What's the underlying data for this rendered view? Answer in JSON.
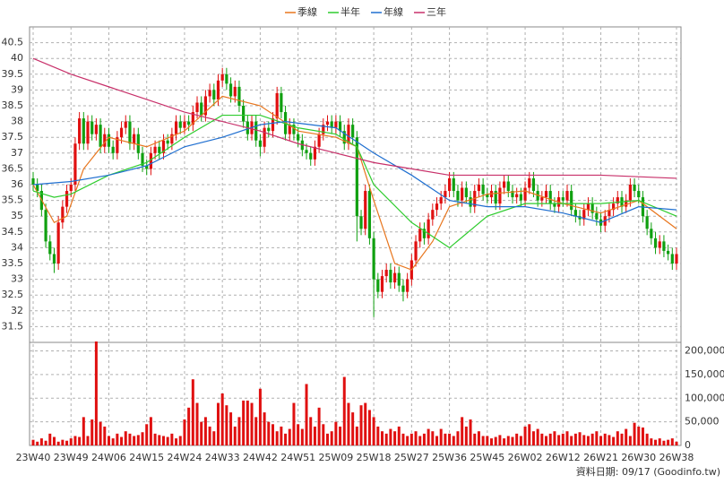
{
  "chart_data": {
    "type": "candlestick",
    "up_color": "#e01010",
    "down_color": "#10a010",
    "volume_color": "#e01010",
    "grid": true,
    "legend": "top",
    "footer": "資料日期: 09/17 (Goodinfo.tw)",
    "categories": [
      "23W40",
      null,
      null,
      null,
      null,
      null,
      null,
      null,
      null,
      "23W49",
      null,
      null,
      null,
      null,
      null,
      null,
      null,
      null,
      "24W06",
      null,
      null,
      null,
      null,
      null,
      null,
      null,
      null,
      "24W15",
      null,
      null,
      null,
      null,
      null,
      null,
      null,
      null,
      "24W24",
      null,
      null,
      null,
      null,
      null,
      null,
      null,
      null,
      "24W33",
      null,
      null,
      null,
      null,
      null,
      null,
      null,
      null,
      "24W42",
      null,
      null,
      null,
      null,
      null,
      null,
      null,
      null,
      "24W51",
      null,
      null,
      null,
      null,
      null,
      null,
      null,
      null,
      "25W09",
      null,
      null,
      null,
      null,
      null,
      null,
      null,
      null,
      "25W18",
      null,
      null,
      null,
      null,
      null,
      null,
      null,
      null,
      "25W27",
      null,
      null,
      null,
      null,
      null,
      null,
      null,
      null,
      "25W36",
      null,
      null,
      null,
      null,
      null,
      null,
      null,
      null,
      "25W45",
      null,
      null,
      null,
      null,
      null,
      null,
      null,
      null,
      "26W02",
      null,
      null,
      null,
      null,
      null,
      null,
      null,
      null,
      "26W12",
      null,
      null,
      null,
      null,
      null,
      null,
      null,
      null,
      "26W21",
      null,
      null,
      null,
      null,
      null,
      null,
      null,
      null,
      "26W30",
      null,
      null,
      null,
      null,
      null,
      null,
      null,
      null,
      "26W38"
    ],
    "open": [
      36.2,
      36.0,
      35.8,
      35.2,
      34.2,
      33.8,
      33.5,
      34.8,
      35.3,
      35.8,
      36.0,
      37.3,
      38.1,
      37.3,
      38.0,
      37.6,
      37.9,
      37.2,
      37.6,
      37.2,
      37.0,
      37.5,
      37.8,
      38.0,
      37.3,
      37.6,
      37.0,
      36.6,
      36.5,
      37.0,
      37.2,
      37.0,
      37.4,
      37.3,
      37.6,
      38.0,
      37.8,
      38.0,
      37.9,
      38.3,
      38.6,
      38.2,
      38.8,
      39.0,
      38.7,
      39.3,
      39.5,
      39.2,
      38.8,
      39.1,
      38.5,
      38.0,
      37.6,
      38.0,
      37.4,
      37.2,
      37.8,
      37.7,
      38.1,
      38.9,
      38.3,
      37.6,
      37.9,
      37.6,
      37.4,
      37.1,
      37.0,
      36.8,
      37.2,
      37.6,
      37.9,
      38.0,
      37.8,
      38.0,
      37.7,
      37.3,
      37.9,
      37.5,
      35.0,
      34.6,
      35.8,
      34.3,
      33.0,
      32.6,
      33.1,
      33.3,
      32.9,
      33.2,
      32.8,
      32.6,
      33.0,
      33.6,
      34.2,
      34.6,
      34.3,
      34.9,
      35.2,
      35.4,
      35.6,
      35.8,
      36.2,
      35.8,
      35.5,
      35.9,
      35.6,
      35.3,
      35.8,
      36.0,
      35.7,
      35.6,
      35.8,
      35.4,
      35.9,
      36.1,
      35.8,
      35.6,
      35.7,
      35.5,
      35.9,
      36.2,
      35.8,
      35.5,
      35.6,
      35.8,
      35.4,
      35.3,
      35.6,
      35.5,
      35.8,
      35.2,
      35.0,
      34.9,
      35.2,
      35.4,
      35.1,
      34.9,
      34.7,
      35.0,
      35.2,
      35.4,
      35.6,
      35.3,
      35.5,
      36.0,
      35.8,
      35.6,
      35.0,
      34.6,
      34.3,
      34.0,
      34.2,
      33.9,
      33.8,
      33.5
    ],
    "high": [
      36.4,
      36.2,
      36.0,
      35.4,
      34.4,
      34.0,
      35.0,
      35.5,
      36.0,
      36.2,
      37.5,
      38.3,
      38.3,
      38.2,
      38.2,
      38.1,
      38.1,
      37.8,
      37.8,
      37.4,
      37.7,
      38.0,
      38.2,
      38.2,
      37.8,
      37.8,
      37.2,
      36.8,
      37.2,
      37.4,
      37.4,
      37.6,
      37.6,
      37.8,
      38.2,
      38.2,
      38.2,
      38.2,
      38.5,
      38.8,
      38.8,
      39.0,
      39.2,
      39.2,
      39.5,
      39.7,
      39.7,
      39.4,
      39.3,
      39.3,
      38.7,
      38.2,
      38.2,
      38.2,
      37.6,
      38.0,
      38.0,
      38.3,
      39.1,
      39.1,
      38.5,
      38.1,
      38.1,
      37.8,
      37.6,
      37.3,
      37.2,
      37.4,
      37.8,
      38.1,
      38.2,
      38.2,
      38.2,
      38.2,
      37.9,
      38.1,
      38.1,
      37.7,
      35.2,
      36.0,
      36.0,
      34.5,
      33.2,
      33.3,
      33.5,
      33.5,
      33.4,
      33.4,
      33.0,
      33.2,
      33.8,
      34.4,
      34.8,
      34.8,
      35.1,
      35.4,
      35.6,
      35.8,
      36.0,
      36.4,
      36.4,
      36.0,
      36.1,
      36.1,
      35.8,
      36.0,
      36.2,
      36.2,
      35.9,
      36.0,
      36.0,
      36.1,
      36.3,
      36.3,
      36.0,
      35.9,
      35.9,
      36.1,
      36.4,
      36.4,
      36.0,
      35.8,
      36.0,
      36.0,
      35.6,
      35.8,
      35.8,
      36.0,
      36.0,
      35.4,
      35.2,
      35.4,
      35.6,
      35.6,
      35.3,
      35.1,
      35.2,
      35.4,
      35.6,
      35.8,
      35.8,
      35.7,
      36.2,
      36.2,
      36.0,
      35.8,
      35.2,
      34.8,
      34.5,
      34.4,
      34.4,
      34.1,
      34.0,
      34.0
    ],
    "low": [
      35.8,
      35.6,
      35.0,
      34.0,
      33.6,
      33.2,
      33.3,
      34.6,
      35.1,
      35.6,
      35.8,
      37.1,
      37.1,
      37.1,
      37.4,
      37.4,
      37.0,
      37.0,
      37.0,
      36.8,
      36.8,
      37.3,
      37.6,
      37.1,
      37.1,
      36.8,
      36.4,
      36.3,
      36.3,
      36.8,
      36.8,
      36.8,
      37.1,
      37.1,
      37.4,
      37.6,
      37.6,
      37.7,
      37.7,
      38.1,
      38.0,
      38.0,
      38.6,
      38.5,
      38.5,
      39.1,
      39.0,
      38.6,
      38.6,
      38.3,
      37.8,
      37.4,
      37.4,
      37.2,
      36.9,
      37.0,
      37.5,
      37.5,
      37.9,
      38.1,
      37.4,
      37.4,
      37.4,
      37.2,
      36.9,
      36.8,
      36.6,
      36.6,
      37.0,
      37.4,
      37.7,
      37.6,
      37.6,
      37.5,
      37.1,
      37.1,
      37.3,
      34.2,
      34.4,
      34.4,
      34.1,
      31.8,
      32.4,
      32.4,
      32.9,
      32.7,
      32.7,
      32.6,
      32.3,
      32.4,
      32.8,
      33.4,
      34.0,
      34.1,
      34.1,
      34.7,
      35.0,
      35.2,
      35.4,
      35.6,
      35.6,
      35.3,
      35.3,
      35.4,
      35.1,
      35.1,
      35.6,
      35.5,
      35.4,
      35.4,
      35.2,
      35.2,
      35.7,
      35.6,
      35.4,
      35.4,
      35.3,
      35.3,
      35.7,
      35.6,
      35.3,
      35.3,
      35.4,
      35.2,
      35.1,
      35.1,
      35.3,
      35.3,
      35.0,
      34.8,
      34.7,
      34.7,
      35.0,
      34.9,
      34.7,
      34.5,
      34.5,
      34.8,
      35.0,
      35.2,
      35.1,
      35.1,
      35.3,
      35.6,
      35.4,
      34.8,
      34.4,
      34.1,
      33.8,
      33.8,
      33.7,
      33.6,
      33.3,
      33.3
    ],
    "close": [
      36.0,
      35.8,
      35.2,
      34.2,
      33.8,
      33.5,
      34.8,
      35.3,
      35.8,
      36.0,
      37.3,
      38.1,
      37.3,
      38.0,
      37.6,
      37.9,
      37.2,
      37.6,
      37.2,
      37.0,
      37.5,
      37.8,
      38.0,
      37.3,
      37.6,
      37.0,
      36.6,
      36.5,
      37.0,
      37.2,
      37.0,
      37.4,
      37.3,
      37.6,
      38.0,
      37.8,
      38.0,
      37.9,
      38.3,
      38.6,
      38.2,
      38.8,
      39.0,
      38.7,
      39.3,
      39.5,
      39.2,
      38.8,
      39.1,
      38.5,
      38.0,
      37.6,
      38.0,
      37.4,
      37.2,
      37.8,
      37.7,
      38.1,
      38.9,
      38.3,
      37.6,
      37.9,
      37.6,
      37.4,
      37.1,
      37.0,
      36.8,
      37.2,
      37.6,
      37.9,
      38.0,
      37.8,
      38.0,
      37.7,
      37.3,
      37.9,
      37.5,
      35.0,
      34.6,
      35.8,
      34.3,
      33.0,
      32.6,
      33.1,
      33.3,
      32.9,
      33.2,
      32.8,
      32.6,
      33.0,
      33.6,
      34.2,
      34.6,
      34.3,
      34.9,
      35.2,
      35.4,
      35.6,
      35.8,
      36.2,
      35.8,
      35.5,
      35.9,
      35.6,
      35.3,
      35.8,
      36.0,
      35.7,
      35.6,
      35.8,
      35.4,
      35.9,
      36.1,
      35.8,
      35.6,
      35.7,
      35.5,
      35.9,
      36.2,
      35.8,
      35.5,
      35.6,
      35.8,
      35.4,
      35.3,
      35.6,
      35.5,
      35.8,
      35.2,
      35.0,
      34.9,
      35.2,
      35.4,
      35.1,
      34.9,
      34.7,
      35.0,
      35.2,
      35.4,
      35.6,
      35.3,
      35.5,
      36.0,
      35.8,
      35.6,
      35.0,
      34.6,
      34.3,
      34.0,
      34.2,
      33.9,
      33.8,
      33.5,
      33.8
    ],
    "volume": [
      12000,
      8000,
      15000,
      10000,
      25000,
      18000,
      8000,
      12000,
      10000,
      15000,
      20000,
      18000,
      60000,
      20000,
      55000,
      220000,
      50000,
      40000,
      20000,
      15000,
      25000,
      18000,
      30000,
      25000,
      20000,
      22000,
      28000,
      45000,
      60000,
      25000,
      22000,
      20000,
      18000,
      25000,
      15000,
      20000,
      55000,
      80000,
      140000,
      90000,
      50000,
      60000,
      40000,
      30000,
      90000,
      110000,
      85000,
      70000,
      40000,
      60000,
      95000,
      95000,
      90000,
      60000,
      120000,
      70000,
      50000,
      45000,
      30000,
      40000,
      25000,
      35000,
      90000,
      45000,
      35000,
      130000,
      60000,
      40000,
      80000,
      45000,
      25000,
      30000,
      50000,
      40000,
      145000,
      90000,
      70000,
      40000,
      85000,
      90000,
      75000,
      60000,
      40000,
      30000,
      25000,
      35000,
      30000,
      40000,
      25000,
      20000,
      25000,
      30000,
      20000,
      25000,
      35000,
      30000,
      20000,
      35000,
      25000,
      25000,
      20000,
      30000,
      60000,
      40000,
      55000,
      25000,
      30000,
      20000,
      20000,
      15000,
      18000,
      22000,
      15000,
      20000,
      18000,
      25000,
      20000,
      40000,
      45000,
      30000,
      35000,
      25000,
      20000,
      25000,
      30000,
      22000,
      25000,
      30000,
      20000,
      25000,
      28000,
      22000,
      20000,
      25000,
      30000,
      20000,
      25000,
      22000,
      18000,
      30000,
      25000,
      35000,
      20000,
      48000,
      40000,
      38000,
      25000,
      15000,
      12000,
      15000,
      10000,
      12000,
      15000,
      8000
    ],
    "series": [
      {
        "name": "季線",
        "color": "#e8761e",
        "x": [
          0,
          5,
          8,
          12,
          18,
          27,
          36,
          45,
          54,
          63,
          72,
          77,
          81,
          86,
          90,
          95,
          99,
          108,
          117,
          126,
          135,
          144,
          153
        ],
        "values": [
          36.0,
          34.8,
          35.0,
          36.5,
          37.5,
          37.2,
          37.7,
          38.8,
          38.5,
          37.7,
          37.5,
          37.2,
          35.5,
          33.5,
          33.3,
          34.2,
          35.3,
          35.7,
          35.8,
          35.4,
          35.1,
          35.5,
          34.6
        ]
      },
      {
        "name": "半年",
        "color": "#2ecc2e",
        "x": [
          0,
          5,
          9,
          18,
          27,
          36,
          45,
          54,
          63,
          72,
          77,
          81,
          90,
          99,
          108,
          117,
          126,
          135,
          144,
          153
        ],
        "values": [
          35.8,
          35.6,
          35.7,
          36.3,
          36.7,
          37.5,
          38.2,
          38.2,
          37.8,
          37.6,
          37.2,
          36.0,
          34.8,
          34.0,
          35.0,
          35.4,
          35.4,
          35.4,
          35.5,
          35.0
        ]
      },
      {
        "name": "年線",
        "color": "#1f6fd0",
        "x": [
          0,
          9,
          18,
          27,
          36,
          45,
          54,
          60,
          72,
          81,
          90,
          99,
          108,
          117,
          126,
          135,
          144,
          153
        ],
        "values": [
          36.0,
          36.1,
          36.3,
          36.6,
          37.2,
          37.5,
          37.9,
          38.0,
          37.8,
          37.0,
          36.3,
          35.5,
          35.3,
          35.3,
          35.1,
          34.8,
          35.3,
          35.2
        ]
      },
      {
        "name": "三年",
        "color": "#c8306a",
        "x": [
          0,
          9,
          18,
          27,
          36,
          45,
          54,
          63,
          72,
          81,
          90,
          99,
          108,
          117,
          126,
          135,
          144,
          153
        ],
        "values": [
          40.0,
          39.5,
          39.1,
          38.7,
          38.3,
          38.0,
          37.7,
          37.3,
          37.0,
          36.7,
          36.5,
          36.3,
          36.3,
          36.3,
          36.3,
          36.3,
          36.25,
          36.2
        ]
      }
    ],
    "ylim": [
      31.0,
      41.0
    ],
    "yticks": [
      31.5,
      32,
      32.5,
      33,
      33.5,
      34,
      34.5,
      35,
      35.5,
      36,
      36.5,
      37,
      37.5,
      38,
      38.5,
      39,
      39.5,
      40,
      40.5
    ],
    "volume_ylim": [
      0,
      220000
    ],
    "volume_yticks": [
      0,
      {
        "value": 50000,
        "label": "50,000"
      },
      {
        "value": 100000,
        "label": "100,000"
      },
      {
        "value": 150000,
        "label": "150,000"
      },
      {
        "value": 200000,
        "label": "200,000"
      }
    ]
  }
}
